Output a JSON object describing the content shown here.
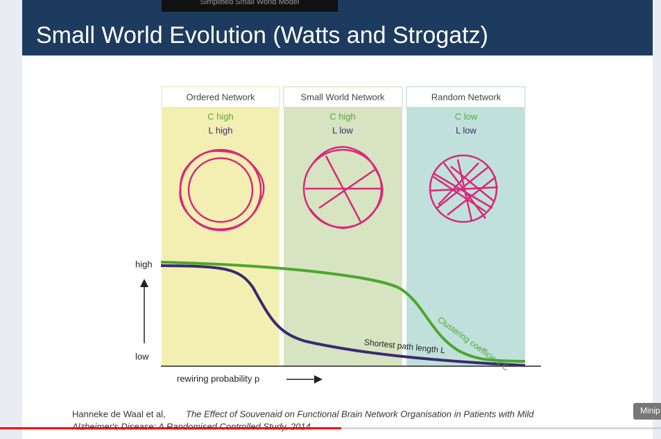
{
  "slide": {
    "top_tab": "Simplified Small World Model",
    "title": "Small World Evolution (Watts and Strogatz)",
    "panels": [
      {
        "title": "Ordered Network",
        "c": "C high",
        "l": "L high"
      },
      {
        "title": "Small World Network",
        "c": "C high",
        "l": "L low"
      },
      {
        "title": "Random Network",
        "c": "C low",
        "l": "L low"
      }
    ],
    "y_high": "high",
    "y_low": "low",
    "x_label": "rewiring probability p",
    "curve_c": "Clustering coefficient C",
    "curve_l": "Shortest path length L",
    "citation_authors": "Hanneke de Waal et al,",
    "citation_title_1": "The Effect of Souvenaid on Functional Brain Network Organisation in Patients with Mild",
    "citation_title_2": "Alzheimer's Disease: A Randomised Controlled Study, 2014."
  },
  "player": {
    "miniplayer": "Minip"
  }
}
